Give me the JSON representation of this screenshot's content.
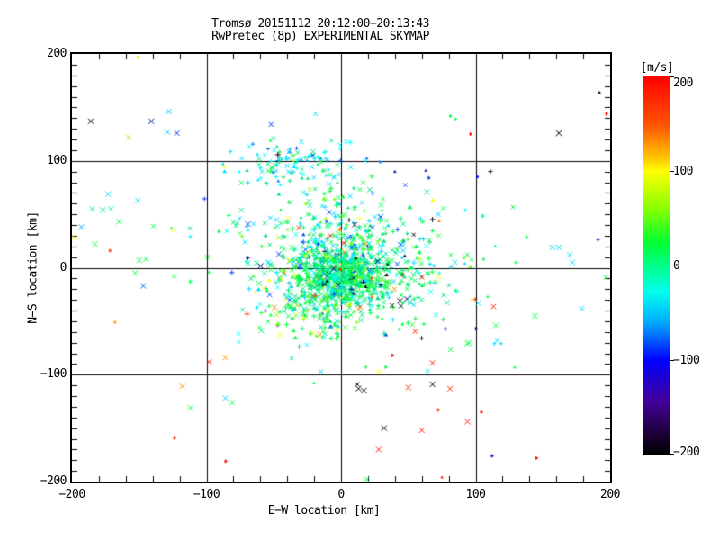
{
  "title": {
    "line1": "Tromsø 20151112 20:12:00−20:13:43",
    "line2": "RwPretec (8p) EXPERIMENTAL SKYMAP"
  },
  "colorbar": {
    "label": "[m/s]",
    "min": -200,
    "max": 200,
    "ticks": [
      {
        "value": 200,
        "label": "200"
      },
      {
        "value": 100,
        "label": "100"
      },
      {
        "value": 0,
        "label": "0"
      },
      {
        "value": -100,
        "label": "−100"
      },
      {
        "value": -200,
        "label": "−200"
      }
    ],
    "gradient": [
      [
        "#ff0000",
        0.0
      ],
      [
        "#ff5500",
        0.13
      ],
      [
        "#ffcc00",
        0.22
      ],
      [
        "#ffff00",
        0.25
      ],
      [
        "#88ff00",
        0.35
      ],
      [
        "#00ff33",
        0.44
      ],
      [
        "#00ff88",
        0.5
      ],
      [
        "#00ffee",
        0.57
      ],
      [
        "#00aaff",
        0.65
      ],
      [
        "#0000ff",
        0.75
      ],
      [
        "#440099",
        0.86
      ],
      [
        "#1a0033",
        0.95
      ],
      [
        "#000000",
        1.0
      ]
    ]
  },
  "chart_data": {
    "type": "scatter",
    "title": "Tromsø 20151112 20:12:00−20:13:43 / RwPretec (8p) EXPERIMENTAL SKYMAP",
    "xlabel": "E−W location [km]",
    "ylabel": "N−S location [km]",
    "xlim": [
      -200,
      200
    ],
    "ylim": [
      -200,
      200
    ],
    "xticks": [
      {
        "value": -200,
        "label": "−200"
      },
      {
        "value": -100,
        "label": "−100"
      },
      {
        "value": 0,
        "label": "0"
      },
      {
        "value": 100,
        "label": "100"
      },
      {
        "value": 200,
        "label": "200"
      }
    ],
    "yticks": [
      {
        "value": -200,
        "label": "−200"
      },
      {
        "value": -100,
        "label": "−100"
      },
      {
        "value": 0,
        "label": "0"
      },
      {
        "value": 100,
        "label": "100"
      },
      {
        "value": 200,
        "label": "200"
      }
    ],
    "grid_values": [
      -100,
      0,
      100
    ],
    "minor_tick_step_x": 20,
    "minor_tick_step_y": 10,
    "color_value_unit": "m/s",
    "seed": 1337,
    "marker_weights": [
      [
        "x",
        0.45
      ],
      [
        "p",
        0.35
      ],
      [
        "t",
        0.2
      ]
    ],
    "clusters": [
      {
        "name": "core-dense",
        "count": 620,
        "cx": 0,
        "cy": -7,
        "sx": 16,
        "sy": 14,
        "size": [
          4,
          6
        ],
        "colors": [
          [
            "#00e87c",
            0.26
          ],
          [
            "#00ff40",
            0.26
          ],
          [
            "#00d9a0",
            0.13
          ],
          [
            "#00ffff",
            0.1
          ],
          [
            "#33ff33",
            0.08
          ],
          [
            "#00ccff",
            0.06
          ],
          [
            "#66ff00",
            0.04
          ],
          [
            "#0044ff",
            0.03
          ],
          [
            "#ffff00",
            0.01
          ],
          [
            "#ff8800",
            0.01
          ],
          [
            "#ff2200",
            0.01
          ],
          [
            "#000099",
            0.005
          ],
          [
            "#000000",
            0.005
          ]
        ]
      },
      {
        "name": "core-halo",
        "count": 430,
        "cx": 6,
        "cy": 2,
        "sx": 36,
        "sy": 28,
        "size": [
          4,
          6
        ],
        "colors": [
          [
            "#00e87c",
            0.24
          ],
          [
            "#00ff40",
            0.22
          ],
          [
            "#00ddff",
            0.16
          ],
          [
            "#00ffff",
            0.1
          ],
          [
            "#33ff33",
            0.07
          ],
          [
            "#66ff00",
            0.05
          ],
          [
            "#0044ff",
            0.05
          ],
          [
            "#ffff00",
            0.03
          ],
          [
            "#ff8800",
            0.02
          ],
          [
            "#ff2200",
            0.02
          ],
          [
            "#000099",
            0.02
          ],
          [
            "#000000",
            0.02
          ]
        ]
      },
      {
        "name": "upper-cluster",
        "count": 95,
        "cx": -38,
        "cy": 98,
        "sx": 20,
        "sy": 9,
        "size": [
          4,
          5
        ],
        "colors": [
          [
            "#00ddff",
            0.34
          ],
          [
            "#00e87c",
            0.24
          ],
          [
            "#00ffff",
            0.14
          ],
          [
            "#00ff40",
            0.12
          ],
          [
            "#0088ff",
            0.07
          ],
          [
            "#80ff00",
            0.05
          ],
          [
            "#0033cc",
            0.04
          ]
        ]
      },
      {
        "name": "bridge",
        "count": 75,
        "cx": -18,
        "cy": 55,
        "sx": 24,
        "sy": 20,
        "size": [
          4,
          5
        ],
        "colors": [
          [
            "#00e87c",
            0.35
          ],
          [
            "#00ff40",
            0.25
          ],
          [
            "#00ddff",
            0.25
          ],
          [
            "#66ff00",
            0.08
          ],
          [
            "#0066ff",
            0.07
          ]
        ]
      },
      {
        "name": "south-spur",
        "count": 90,
        "cx": -18,
        "cy": -42,
        "sx": 22,
        "sy": 14,
        "size": [
          4,
          6
        ],
        "colors": [
          [
            "#00ff40",
            0.3
          ],
          [
            "#00e87c",
            0.25
          ],
          [
            "#33ff33",
            0.15
          ],
          [
            "#66ff00",
            0.1
          ],
          [
            "#aaee00",
            0.06
          ],
          [
            "#00ddff",
            0.08
          ],
          [
            "#ff8800",
            0.03
          ],
          [
            "#ffff00",
            0.03
          ]
        ]
      },
      {
        "name": "wide-scatter",
        "count": 135,
        "cx": 8,
        "cy": 5,
        "sx": 62,
        "sy": 52,
        "size": [
          4,
          6
        ],
        "colors": [
          [
            "#00e87c",
            0.28
          ],
          [
            "#00ff40",
            0.24
          ],
          [
            "#00ddff",
            0.18
          ],
          [
            "#00ffff",
            0.08
          ],
          [
            "#ffff00",
            0.05
          ],
          [
            "#ff8800",
            0.03
          ],
          [
            "#ff2200",
            0.03
          ],
          [
            "#0044ff",
            0.05
          ],
          [
            "#80ff00",
            0.04
          ],
          [
            "#000000",
            0.02
          ]
        ]
      }
    ],
    "outliers": [
      [
        -186,
        137,
        "#000000",
        "x",
        6
      ],
      [
        -141,
        137,
        "#001a99",
        "x",
        6
      ],
      [
        -128,
        146,
        "#00ccff",
        "x",
        6
      ],
      [
        -129,
        127,
        "#00ccff",
        "x",
        6
      ],
      [
        -122,
        126,
        "#0033ff",
        "x",
        6
      ],
      [
        -158,
        122,
        "#aaee00",
        "x",
        6
      ],
      [
        -151,
        197,
        "#aaff00",
        "t",
        4
      ],
      [
        -173,
        69,
        "#00ddff",
        "x",
        6
      ],
      [
        -185,
        55,
        "#00e896",
        "x",
        6
      ],
      [
        -177,
        54,
        "#00e896",
        "x",
        6
      ],
      [
        -171,
        55,
        "#00ff66",
        "x",
        6
      ],
      [
        -151,
        63,
        "#00e0ff",
        "x",
        6
      ],
      [
        -52,
        134,
        "#0033ff",
        "x",
        5
      ],
      [
        -19,
        144,
        "#00ddff",
        "x",
        5
      ],
      [
        85,
        139,
        "#00ff40",
        "p",
        4
      ],
      [
        -193,
        38,
        "#00aaff",
        "x",
        6
      ],
      [
        -165,
        43,
        "#00ff40",
        "x",
        6
      ],
      [
        -198,
        28,
        "#ffff00",
        "x",
        6
      ],
      [
        -183,
        22,
        "#00ff40",
        "x",
        6
      ],
      [
        -172,
        16,
        "#ff4400",
        "d",
        3
      ],
      [
        -126,
        37,
        "#00ff40",
        "t",
        4
      ],
      [
        -112,
        29,
        "#00ddff",
        "p",
        4
      ],
      [
        -150,
        7,
        "#00ff40",
        "x",
        6
      ],
      [
        -145,
        8,
        "#00ff40",
        "x",
        6
      ],
      [
        -153,
        -5,
        "#00ff40",
        "x",
        6
      ],
      [
        -147,
        -17,
        "#0066ff",
        "x",
        6
      ],
      [
        -112,
        -13,
        "#00ff40",
        "p",
        5
      ],
      [
        -168,
        -51,
        "#ff8800",
        "p",
        4
      ],
      [
        -98,
        -4,
        "#00ff40",
        "t",
        4
      ],
      [
        -98,
        -88,
        "#ff2200",
        "x",
        6
      ],
      [
        -86,
        -84,
        "#ff9900",
        "x",
        6
      ],
      [
        -118,
        -111,
        "#ff9900",
        "x",
        6
      ],
      [
        -86,
        -122,
        "#00ddff",
        "x",
        6
      ],
      [
        -112,
        -131,
        "#00ff40",
        "x",
        6
      ],
      [
        -124,
        -159,
        "#ff2200",
        "d",
        3
      ],
      [
        -86,
        -181,
        "#ff0000",
        "d",
        3
      ],
      [
        -15,
        -97,
        "#00ddff",
        "x",
        5
      ],
      [
        -20,
        -108,
        "#00ff40",
        "t",
        4
      ],
      [
        13,
        -113,
        "#000000",
        "x",
        6
      ],
      [
        17,
        -115,
        "#000000",
        "x",
        6
      ],
      [
        12,
        -109,
        "#000000",
        "x",
        5
      ],
      [
        19,
        -198,
        "#00ff40",
        "x",
        6
      ],
      [
        32,
        -150,
        "#000000",
        "x",
        6
      ],
      [
        28,
        -170,
        "#ff2200",
        "x",
        6
      ],
      [
        28,
        -97,
        "#ffff00",
        "x",
        5
      ],
      [
        33,
        -93,
        "#00ff40",
        "d",
        3
      ],
      [
        38,
        -82,
        "#ff0000",
        "d",
        3
      ],
      [
        50,
        -112,
        "#ff2200",
        "x",
        6
      ],
      [
        60,
        -152,
        "#ff2200",
        "x",
        6
      ],
      [
        68,
        -89,
        "#ff2200",
        "x",
        6
      ],
      [
        68,
        -109,
        "#000000",
        "x",
        6
      ],
      [
        72,
        -133,
        "#ff2200",
        "d",
        3
      ],
      [
        75,
        -196,
        "#ff2200",
        "t",
        4
      ],
      [
        81,
        -113,
        "#ff2200",
        "x",
        6
      ],
      [
        94,
        -144,
        "#ff2200",
        "x",
        6
      ],
      [
        94,
        -71,
        "#00ff40",
        "x",
        6
      ],
      [
        104,
        -135,
        "#ff0000",
        "d",
        3
      ],
      [
        112,
        -176,
        "#0000ff",
        "d",
        3
      ],
      [
        145,
        -178,
        "#ff0000",
        "d",
        3
      ],
      [
        114,
        -71,
        "#00ddff",
        "p",
        4
      ],
      [
        119,
        -71,
        "#00ddff",
        "p",
        4
      ],
      [
        129,
        -93,
        "#00ff40",
        "t",
        4
      ],
      [
        96,
        125,
        "#ff0000",
        "d",
        3
      ],
      [
        81,
        142,
        "#00ff40",
        "d",
        3
      ],
      [
        111,
        90,
        "#000000",
        "p",
        5
      ],
      [
        101,
        85,
        "#0000ff",
        "d",
        3
      ],
      [
        162,
        126,
        "#000000",
        "x",
        7
      ],
      [
        192,
        164,
        "#000000",
        "t",
        4
      ],
      [
        191,
        26,
        "#0033ff",
        "p",
        4
      ],
      [
        157,
        19,
        "#00ddff",
        "x",
        6
      ],
      [
        162,
        19,
        "#00ddff",
        "x",
        6
      ],
      [
        170,
        12,
        "#00ddff",
        "x",
        6
      ],
      [
        172,
        5,
        "#00ddff",
        "x",
        6
      ],
      [
        106,
        8,
        "#00ff40",
        "p",
        4
      ],
      [
        92,
        4,
        "#00ddff",
        "t",
        4
      ],
      [
        197,
        -9,
        "#00ff40",
        "x",
        6
      ],
      [
        85,
        -21,
        "#00ff40",
        "p",
        4
      ],
      [
        97,
        -29,
        "#ffff00",
        "t",
        4
      ],
      [
        102,
        -33,
        "#00ddff",
        "x",
        6
      ],
      [
        109,
        -27,
        "#00ff40",
        "t",
        4
      ],
      [
        179,
        -38,
        "#00ddff",
        "x",
        6
      ],
      [
        144,
        -45,
        "#00ff40",
        "x",
        6
      ],
      [
        115,
        -54,
        "#00ff40",
        "x",
        6
      ],
      [
        100,
        -57,
        "#550088",
        "d",
        3
      ],
      [
        116,
        -68,
        "#00ddff",
        "x",
        6
      ],
      [
        95,
        -70,
        "#00ff40",
        "x",
        6
      ],
      [
        29,
        99,
        "#0088ff",
        "d",
        3
      ],
      [
        40,
        90,
        "#002299",
        "t",
        4
      ],
      [
        63,
        91,
        "#001199",
        "t",
        4
      ],
      [
        65,
        84,
        "#0033cc",
        "d",
        3
      ],
      [
        197,
        144,
        "#ff0000",
        "d",
        3
      ]
    ]
  }
}
